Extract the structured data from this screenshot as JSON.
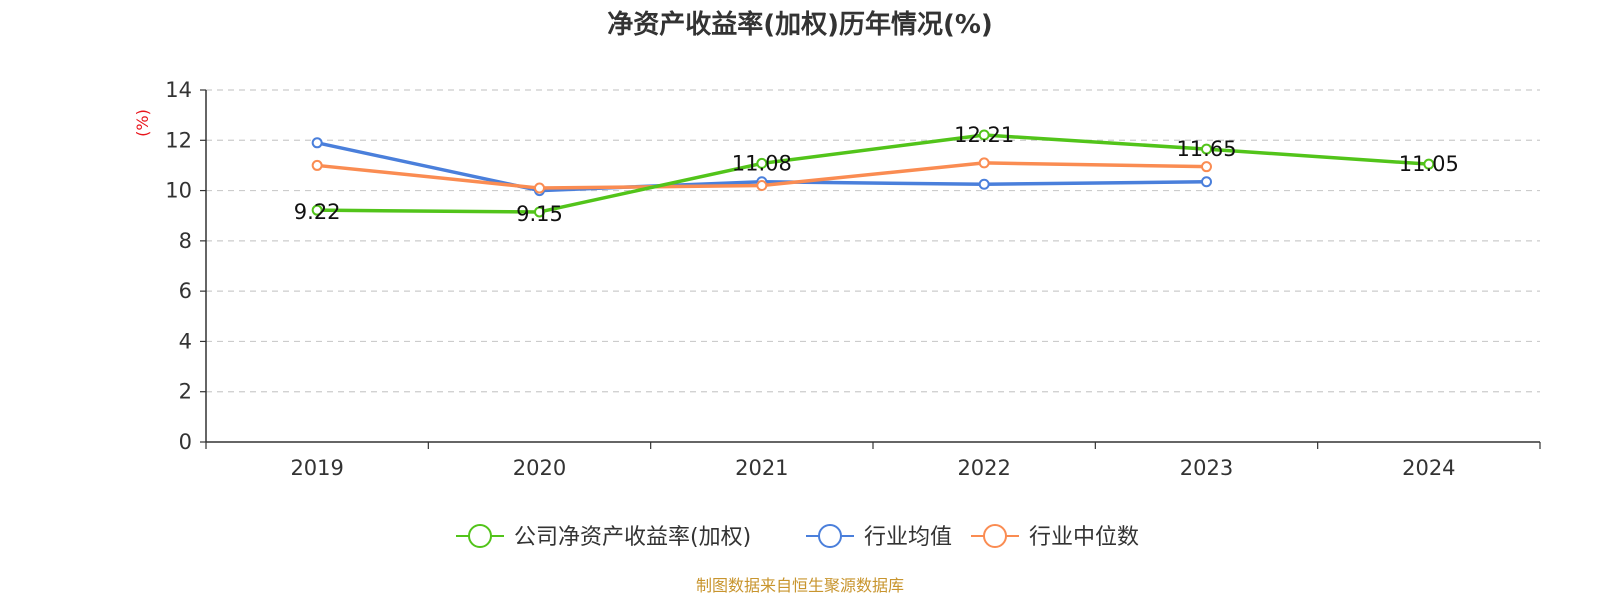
{
  "chart_data": {
    "type": "line",
    "title": "净资产收益率(加权)历年情况(%)",
    "ylabel": "(%)",
    "categories": [
      "2019",
      "2020",
      "2021",
      "2022",
      "2023",
      "2024"
    ],
    "ylim": [
      0,
      14
    ],
    "yticks": [
      0,
      2,
      4,
      6,
      8,
      10,
      12,
      14
    ],
    "grid": true,
    "legend_position": "bottom",
    "series": [
      {
        "name": "公司净资产收益率(加权)",
        "color": "#52c41a",
        "values": [
          9.22,
          9.15,
          11.08,
          12.21,
          11.65,
          11.05
        ],
        "labels": [
          "9.22",
          "9.15",
          "11.08",
          "12.21",
          "11.65",
          "11.05"
        ]
      },
      {
        "name": "行业均值",
        "color": "#4a7fdb",
        "values": [
          11.9,
          10.0,
          10.35,
          10.25,
          10.35,
          null
        ],
        "labels": null
      },
      {
        "name": "行业中位数",
        "color": "#fa8c52",
        "values": [
          11.0,
          10.1,
          10.2,
          11.1,
          10.95,
          null
        ],
        "labels": null
      }
    ]
  },
  "source": "制图数据来自恒生聚源数据库"
}
